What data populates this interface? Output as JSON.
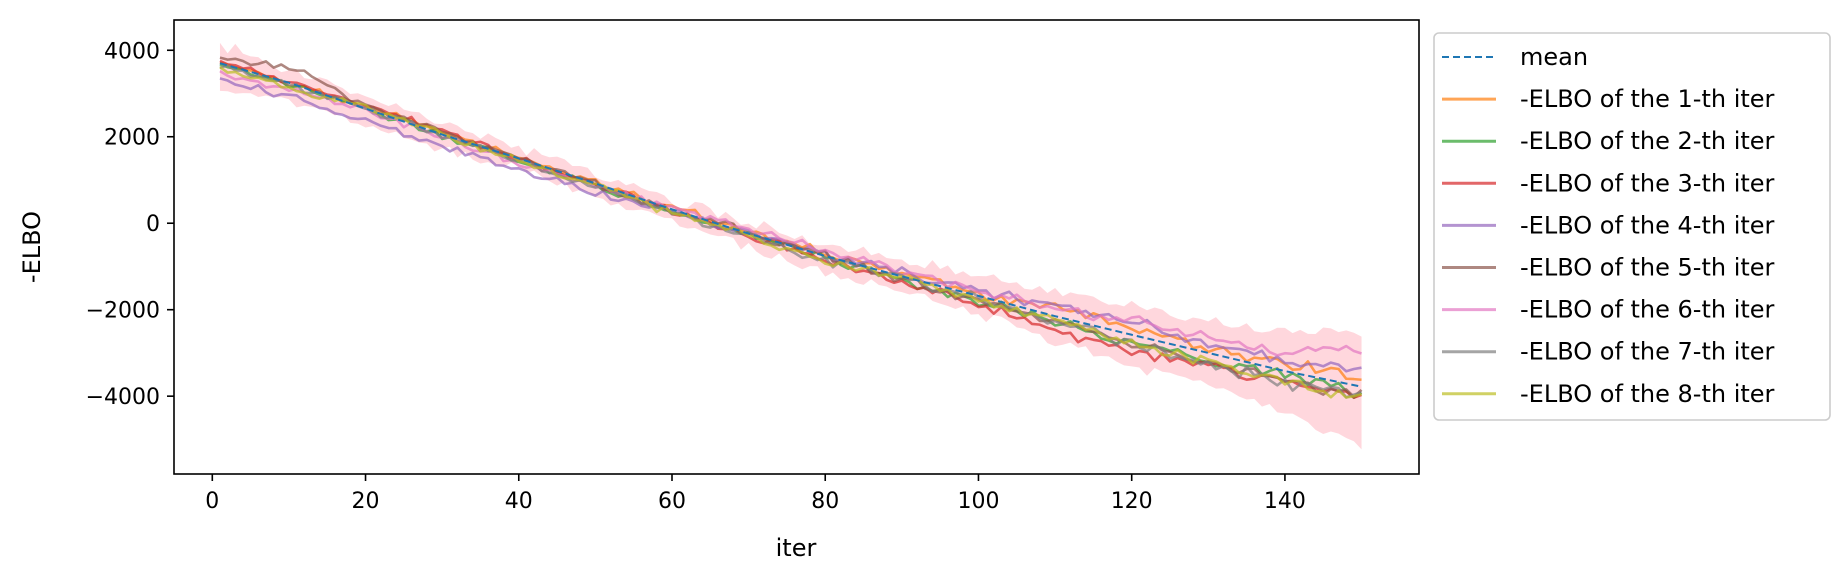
{
  "chart_data": {
    "type": "line",
    "title": "",
    "xlabel": "iter",
    "ylabel": "-ELBO",
    "xlim": [
      -5,
      157.5
    ],
    "ylim": [
      -5800,
      4700
    ],
    "xticks": [
      0,
      20,
      40,
      60,
      80,
      100,
      120,
      140
    ],
    "yticks": [
      -4000,
      -2000,
      0,
      2000,
      4000
    ],
    "ytick_labels": [
      "−4000",
      "−2000",
      "0",
      "2000",
      "4000"
    ],
    "grid": false,
    "legend_position": "outside-right-top",
    "x_start": 1,
    "x_end": 150,
    "mean": {
      "name": "mean",
      "color": "#1f77b4",
      "style": "dashed",
      "x": [
        1,
        10,
        20,
        30,
        40,
        50,
        60,
        70,
        80,
        90,
        100,
        110,
        120,
        130,
        140,
        150
      ],
      "y": [
        3700,
        3250,
        2650,
        2050,
        1500,
        920,
        320,
        -240,
        -760,
        -1230,
        -1680,
        -2150,
        -2580,
        -3000,
        -3420,
        -3780
      ]
    },
    "band": {
      "color": "#ffb6c1",
      "x": [
        1,
        10,
        20,
        30,
        40,
        50,
        60,
        70,
        80,
        90,
        100,
        110,
        120,
        130,
        140,
        150
      ],
      "upper": [
        4150,
        3550,
        2950,
        2350,
        1750,
        1150,
        550,
        0,
        -450,
        -850,
        -1200,
        -1550,
        -1850,
        -2300,
        -2500,
        -2500
      ],
      "lower": [
        3150,
        2850,
        2250,
        1700,
        1250,
        650,
        100,
        -550,
        -1150,
        -1600,
        -2100,
        -2750,
        -3300,
        -3700,
        -4400,
        -5200
      ]
    },
    "series": [
      {
        "name": "-ELBO of the 1-th iter",
        "color": "#ff7f0e",
        "x": [
          1,
          20,
          40,
          60,
          80,
          100,
          110,
          120,
          130,
          140,
          150
        ],
        "y": [
          3700,
          2700,
          1500,
          350,
          -700,
          -1650,
          -1950,
          -2450,
          -2900,
          -3200,
          -3550
        ]
      },
      {
        "name": "-ELBO of the 2-th iter",
        "color": "#2ca02c",
        "x": [
          1,
          20,
          40,
          60,
          80,
          100,
          120,
          140,
          150
        ],
        "y": [
          3700,
          2650,
          1450,
          250,
          -800,
          -1800,
          -2800,
          -3500,
          -3950
        ]
      },
      {
        "name": "-ELBO of the 3-th iter",
        "color": "#d62728",
        "x": [
          1,
          20,
          40,
          60,
          80,
          100,
          120,
          140,
          150
        ],
        "y": [
          3750,
          2750,
          1500,
          250,
          -850,
          -1900,
          -3000,
          -3700,
          -4100
        ]
      },
      {
        "name": "-ELBO of the 4-th iter",
        "color": "#9467bd",
        "x": [
          1,
          10,
          20,
          40,
          60,
          80,
          100,
          120,
          140,
          150
        ],
        "y": [
          3300,
          2950,
          2350,
          1200,
          250,
          -700,
          -1550,
          -2300,
          -3200,
          -3400
        ]
      },
      {
        "name": "-ELBO of the 5-th iter",
        "color": "#8c564b",
        "x": [
          1,
          12,
          20,
          40,
          60,
          80,
          100,
          120,
          140,
          150
        ],
        "y": [
          3850,
          3500,
          2700,
          1500,
          300,
          -750,
          -1800,
          -2750,
          -3600,
          -4000
        ]
      },
      {
        "name": "-ELBO of the 6-th iter",
        "color": "#e377c2",
        "x": [
          1,
          20,
          40,
          60,
          80,
          100,
          120,
          140,
          150
        ],
        "y": [
          3500,
          2600,
          1400,
          350,
          -600,
          -1600,
          -2250,
          -3000,
          -2850
        ]
      },
      {
        "name": "-ELBO of the 7-th iter",
        "color": "#7f7f7f",
        "x": [
          1,
          20,
          40,
          60,
          80,
          100,
          120,
          140,
          150
        ],
        "y": [
          3650,
          2650,
          1450,
          250,
          -850,
          -1750,
          -2800,
          -3700,
          -4000
        ]
      },
      {
        "name": "-ELBO of the 8-th iter",
        "color": "#bcbd22",
        "x": [
          1,
          20,
          40,
          60,
          80,
          100,
          120,
          140,
          150
        ],
        "y": [
          3600,
          2650,
          1450,
          250,
          -850,
          -1750,
          -2800,
          -3650,
          -4100
        ]
      }
    ]
  }
}
